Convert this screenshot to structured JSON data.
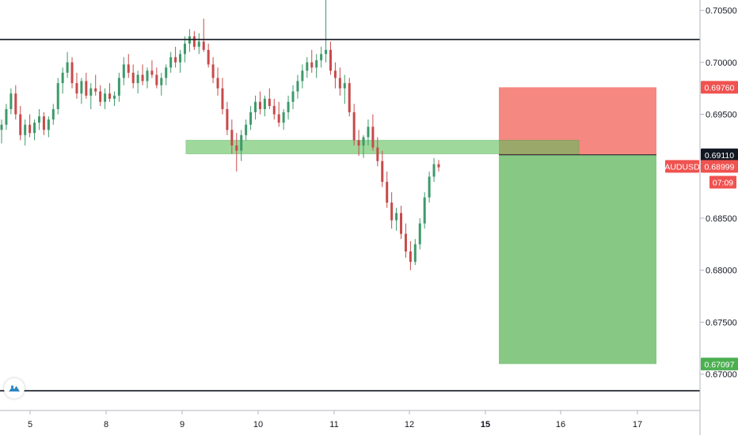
{
  "symbol": "AUDUSD",
  "countdown": "07:09",
  "colors": {
    "up": "#26a69a",
    "down": "#ef5350",
    "candle_up": "#3d9a6a",
    "candle_down": "#c84a4a",
    "zone_green": "#5ec05a",
    "stop_red": "#f47b73",
    "target_green": "#86c884",
    "tag_red": "#ef5350",
    "tag_black": "#131722",
    "tag_green": "#4caf50"
  },
  "price_tags": {
    "stop": "0.69760",
    "entry": "0.69110",
    "last": "0.68999",
    "target": "0.67097"
  },
  "chart_data": {
    "type": "candlestick",
    "y_ticks": [
      "0.70500",
      "0.70000",
      "0.69500",
      "0.69000",
      "0.68500",
      "0.68000",
      "0.67500",
      "0.67000"
    ],
    "y_tick_values": [
      0.705,
      0.7,
      0.695,
      0.69,
      0.685,
      0.68,
      0.675,
      0.67
    ],
    "ylim": [
      0.6665,
      0.706
    ],
    "x_ticks": [
      "5",
      "8",
      "9",
      "10",
      "11",
      "12",
      "15",
      "16",
      "17"
    ],
    "x_tick_bold": [
      "15"
    ],
    "horizontal_lines": [
      0.7022,
      0.6684
    ],
    "support_zone": {
      "top": 0.6925,
      "bottom": 0.6912,
      "from": "9",
      "to": "16"
    },
    "position": {
      "entry": 0.6911,
      "stop": 0.6976,
      "target": 0.67097,
      "from": "15",
      "to": "17"
    },
    "candles_ohlc": [
      [
        0.6935,
        0.6945,
        0.6922,
        0.694
      ],
      [
        0.694,
        0.696,
        0.6935,
        0.6955
      ],
      [
        0.6955,
        0.6975,
        0.695,
        0.697
      ],
      [
        0.697,
        0.6978,
        0.6945,
        0.695
      ],
      [
        0.695,
        0.6958,
        0.6925,
        0.693
      ],
      [
        0.693,
        0.6945,
        0.692,
        0.694
      ],
      [
        0.694,
        0.695,
        0.6928,
        0.6932
      ],
      [
        0.6932,
        0.6945,
        0.6925,
        0.6942
      ],
      [
        0.6942,
        0.6955,
        0.6935,
        0.6948
      ],
      [
        0.6948,
        0.6952,
        0.693,
        0.6935
      ],
      [
        0.6935,
        0.6948,
        0.6928,
        0.6945
      ],
      [
        0.6945,
        0.696,
        0.694,
        0.6955
      ],
      [
        0.6955,
        0.6985,
        0.695,
        0.698
      ],
      [
        0.698,
        0.6995,
        0.697,
        0.699
      ],
      [
        0.699,
        0.701,
        0.6985,
        0.7
      ],
      [
        0.7,
        0.7005,
        0.6975,
        0.698
      ],
      [
        0.698,
        0.699,
        0.6965,
        0.697
      ],
      [
        0.697,
        0.6985,
        0.696,
        0.6982
      ],
      [
        0.6982,
        0.699,
        0.6965,
        0.6968
      ],
      [
        0.6968,
        0.698,
        0.6955,
        0.6975
      ],
      [
        0.6975,
        0.6988,
        0.6968,
        0.6972
      ],
      [
        0.6972,
        0.6978,
        0.6958,
        0.6962
      ],
      [
        0.6962,
        0.6975,
        0.6955,
        0.697
      ],
      [
        0.697,
        0.698,
        0.6962,
        0.6965
      ],
      [
        0.6965,
        0.6972,
        0.6958,
        0.6968
      ],
      [
        0.6968,
        0.699,
        0.6962,
        0.6985
      ],
      [
        0.6985,
        0.7005,
        0.6978,
        0.6998
      ],
      [
        0.6998,
        0.7008,
        0.6985,
        0.699
      ],
      [
        0.699,
        0.6998,
        0.6975,
        0.698
      ],
      [
        0.698,
        0.6992,
        0.697,
        0.6988
      ],
      [
        0.6988,
        0.6998,
        0.6978,
        0.6982
      ],
      [
        0.6982,
        0.6995,
        0.6975,
        0.6992
      ],
      [
        0.6992,
        0.7002,
        0.6985,
        0.6988
      ],
      [
        0.6988,
        0.6995,
        0.6975,
        0.6978
      ],
      [
        0.6978,
        0.699,
        0.6968,
        0.6985
      ],
      [
        0.6985,
        0.6998,
        0.6978,
        0.6995
      ],
      [
        0.6995,
        0.701,
        0.699,
        0.7005
      ],
      [
        0.7005,
        0.7015,
        0.6995,
        0.7
      ],
      [
        0.7,
        0.7012,
        0.699,
        0.7008
      ],
      [
        0.7008,
        0.7025,
        0.7,
        0.7018
      ],
      [
        0.7018,
        0.7032,
        0.701,
        0.7025
      ],
      [
        0.7025,
        0.703,
        0.7012,
        0.7015
      ],
      [
        0.7015,
        0.7028,
        0.7008,
        0.702
      ],
      [
        0.702,
        0.7042,
        0.701,
        0.7012
      ],
      [
        0.7012,
        0.7018,
        0.6995,
        0.6998
      ],
      [
        0.6998,
        0.7005,
        0.698,
        0.6985
      ],
      [
        0.6985,
        0.6995,
        0.6968,
        0.6975
      ],
      [
        0.6975,
        0.6985,
        0.695,
        0.6955
      ],
      [
        0.6955,
        0.6962,
        0.693,
        0.6935
      ],
      [
        0.6935,
        0.6945,
        0.6912,
        0.692
      ],
      [
        0.692,
        0.6932,
        0.6895,
        0.6915
      ],
      [
        0.6915,
        0.6935,
        0.6905,
        0.693
      ],
      [
        0.693,
        0.6945,
        0.6925,
        0.694
      ],
      [
        0.694,
        0.6958,
        0.6935,
        0.6952
      ],
      [
        0.6952,
        0.6968,
        0.6945,
        0.6962
      ],
      [
        0.6962,
        0.6972,
        0.695,
        0.6955
      ],
      [
        0.6955,
        0.6968,
        0.6948,
        0.6965
      ],
      [
        0.6965,
        0.6975,
        0.6955,
        0.6958
      ],
      [
        0.6958,
        0.6965,
        0.6945,
        0.695
      ],
      [
        0.695,
        0.6962,
        0.6938,
        0.6942
      ],
      [
        0.6942,
        0.6955,
        0.6935,
        0.6952
      ],
      [
        0.6952,
        0.6968,
        0.6945,
        0.6962
      ],
      [
        0.6962,
        0.6978,
        0.6955,
        0.6972
      ],
      [
        0.6972,
        0.6988,
        0.6965,
        0.6982
      ],
      [
        0.6982,
        0.6998,
        0.6975,
        0.6992
      ],
      [
        0.6992,
        0.7005,
        0.6985,
        0.7
      ],
      [
        0.7,
        0.7012,
        0.699,
        0.6995
      ],
      [
        0.6995,
        0.7008,
        0.6985,
        0.7002
      ],
      [
        0.7002,
        0.7015,
        0.6995,
        0.7008
      ],
      [
        0.7008,
        0.706,
        0.7,
        0.7012
      ],
      [
        0.7012,
        0.702,
        0.6988,
        0.6992
      ],
      [
        0.6992,
        0.7,
        0.6975,
        0.6985
      ],
      [
        0.6985,
        0.6995,
        0.6968,
        0.6975
      ],
      [
        0.6975,
        0.6988,
        0.696,
        0.698
      ],
      [
        0.698,
        0.6985,
        0.6948,
        0.6952
      ],
      [
        0.6952,
        0.696,
        0.692,
        0.6925
      ],
      [
        0.6925,
        0.6935,
        0.691,
        0.692
      ],
      [
        0.692,
        0.693,
        0.6908,
        0.6928
      ],
      [
        0.6928,
        0.6945,
        0.692,
        0.6938
      ],
      [
        0.6938,
        0.695,
        0.6915,
        0.6918
      ],
      [
        0.6918,
        0.6928,
        0.69,
        0.6905
      ],
      [
        0.6905,
        0.6915,
        0.688,
        0.6885
      ],
      [
        0.6885,
        0.6895,
        0.686,
        0.6865
      ],
      [
        0.6865,
        0.6875,
        0.684,
        0.6848
      ],
      [
        0.6848,
        0.686,
        0.6838,
        0.6855
      ],
      [
        0.6855,
        0.6862,
        0.683,
        0.6835
      ],
      [
        0.6835,
        0.6845,
        0.6812,
        0.6818
      ],
      [
        0.6818,
        0.6828,
        0.68,
        0.6808
      ],
      [
        0.6808,
        0.683,
        0.6805,
        0.6825
      ],
      [
        0.6825,
        0.685,
        0.682,
        0.6845
      ],
      [
        0.6845,
        0.6875,
        0.684,
        0.687
      ],
      [
        0.687,
        0.6895,
        0.6865,
        0.689
      ],
      [
        0.689,
        0.6908,
        0.6885,
        0.6902
      ],
      [
        0.6902,
        0.6906,
        0.6895,
        0.6899
      ]
    ]
  }
}
